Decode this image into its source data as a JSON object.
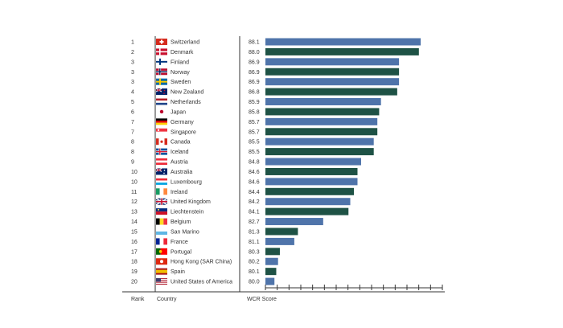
{
  "colors": {
    "blue": "#4f74aa",
    "green": "#1e5245",
    "axis": "#333333"
  },
  "footer": {
    "rank_label": "Rank",
    "country_label": "Country",
    "score_label": "WCR Score"
  },
  "chart_data": {
    "type": "bar",
    "orientation": "horizontal",
    "xlabel": "WCR Score",
    "xlim": [
      79.5,
      89.3
    ],
    "ticks": 16,
    "rows": [
      {
        "rank": "1",
        "country": "Switzerland",
        "score": 88.1,
        "flag": "switzerland-flag"
      },
      {
        "rank": "2",
        "country": "Denmark",
        "score": 88.0,
        "flag": "denmark-flag"
      },
      {
        "rank": "3",
        "country": "Finland",
        "score": 86.9,
        "flag": "finland-flag"
      },
      {
        "rank": "3",
        "country": "Norway",
        "score": 86.9,
        "flag": "norway-flag"
      },
      {
        "rank": "3",
        "country": "Sweden",
        "score": 86.9,
        "flag": "sweden-flag"
      },
      {
        "rank": "4",
        "country": "New Zealand",
        "score": 86.8,
        "flag": "new-zealand-flag"
      },
      {
        "rank": "5",
        "country": "Netherlands",
        "score": 85.9,
        "flag": "netherlands-flag"
      },
      {
        "rank": "6",
        "country": "Japan",
        "score": 85.8,
        "flag": "japan-flag"
      },
      {
        "rank": "7",
        "country": "Germany",
        "score": 85.7,
        "flag": "germany-flag"
      },
      {
        "rank": "7",
        "country": "Singapore",
        "score": 85.7,
        "flag": "singapore-flag"
      },
      {
        "rank": "8",
        "country": "Canada",
        "score": 85.5,
        "flag": "canada-flag"
      },
      {
        "rank": "8",
        "country": "Iceland",
        "score": 85.5,
        "flag": "iceland-flag"
      },
      {
        "rank": "9",
        "country": "Austria",
        "score": 84.8,
        "flag": "austria-flag"
      },
      {
        "rank": "10",
        "country": "Australia",
        "score": 84.6,
        "flag": "australia-flag"
      },
      {
        "rank": "10",
        "country": "Luxembourg",
        "score": 84.6,
        "flag": "luxembourg-flag"
      },
      {
        "rank": "11",
        "country": "Ireland",
        "score": 84.4,
        "flag": "ireland-flag"
      },
      {
        "rank": "12",
        "country": "United Kingdom",
        "score": 84.2,
        "flag": "united-kingdom-flag"
      },
      {
        "rank": "13",
        "country": "Liechtenstein",
        "score": 84.1,
        "flag": "liechtenstein-flag"
      },
      {
        "rank": "14",
        "country": "Belgium",
        "score": 82.7,
        "flag": "belgium-flag"
      },
      {
        "rank": "15",
        "country": "San Marino",
        "score": 81.3,
        "flag": "san-marino-flag"
      },
      {
        "rank": "16",
        "country": "France",
        "score": 81.1,
        "flag": "france-flag"
      },
      {
        "rank": "17",
        "country": "Portugal",
        "score": 80.3,
        "flag": "portugal-flag"
      },
      {
        "rank": "18",
        "country": "Hong Kong (SAR China)",
        "score": 80.2,
        "flag": "hong-kong-flag"
      },
      {
        "rank": "19",
        "country": "Spain",
        "score": 80.1,
        "flag": "spain-flag"
      },
      {
        "rank": "20",
        "country": "United States of America",
        "score": 80.0,
        "flag": "usa-flag"
      }
    ]
  }
}
